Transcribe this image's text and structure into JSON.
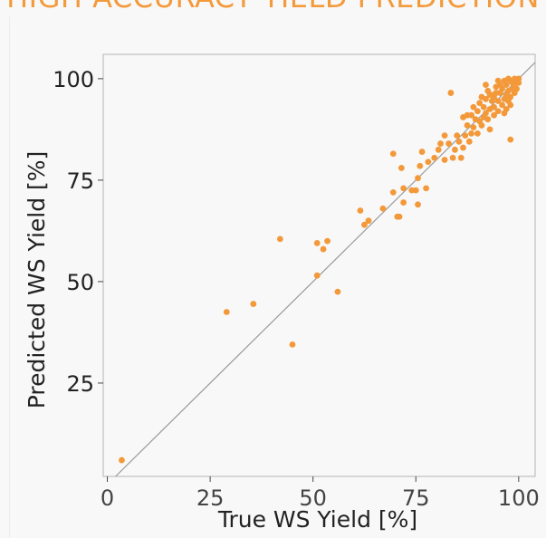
{
  "header": {
    "title": "HIGH ACCURACY YIELD PREDICTION"
  },
  "colors": {
    "accent": "#f39a3b",
    "points": "#f3993a",
    "diagonal": "#9a9a9a",
    "frame": "#b5b5b5"
  },
  "chart_data": {
    "type": "scatter",
    "xlabel": "True WS Yield [%]",
    "ylabel": "Predicted WS Yield [%]",
    "xlim": [
      -1,
      104
    ],
    "ylim": [
      2,
      106
    ],
    "xticks": [
      0,
      25,
      50,
      75,
      100
    ],
    "yticks": [
      25,
      50,
      75,
      100
    ],
    "grid": false,
    "reference_line": "y = x",
    "points": [
      [
        3.5,
        6
      ],
      [
        29,
        42.5
      ],
      [
        35.5,
        44.5
      ],
      [
        42,
        60.5
      ],
      [
        45,
        34.5
      ],
      [
        51,
        51.5
      ],
      [
        51,
        59.5
      ],
      [
        52.5,
        58
      ],
      [
        53.5,
        60
      ],
      [
        56,
        47.5
      ],
      [
        61.5,
        67.5
      ],
      [
        62.5,
        64
      ],
      [
        63.5,
        65
      ],
      [
        67,
        68
      ],
      [
        69.5,
        72
      ],
      [
        69.5,
        81.5
      ],
      [
        70.5,
        66
      ],
      [
        71,
        66
      ],
      [
        71.5,
        78
      ],
      [
        72,
        69.5
      ],
      [
        72,
        73
      ],
      [
        74,
        72.5
      ],
      [
        75,
        72.5
      ],
      [
        75.5,
        75.5
      ],
      [
        75.5,
        69
      ],
      [
        76,
        78.5
      ],
      [
        76.5,
        82
      ],
      [
        77.5,
        73
      ],
      [
        78,
        79.5
      ],
      [
        79.5,
        80.5
      ],
      [
        80.5,
        82.5
      ],
      [
        81,
        84
      ],
      [
        82,
        86
      ],
      [
        82,
        80
      ],
      [
        83,
        84
      ],
      [
        83.5,
        96.5
      ],
      [
        84,
        80.5
      ],
      [
        84.5,
        82.5
      ],
      [
        85,
        86
      ],
      [
        85.5,
        84.5
      ],
      [
        86,
        80.5
      ],
      [
        86.5,
        83
      ],
      [
        87,
        86
      ],
      [
        87.5,
        88.5
      ],
      [
        88,
        84.5
      ],
      [
        88.5,
        91
      ],
      [
        89,
        88
      ],
      [
        89.5,
        90
      ],
      [
        90,
        86.5
      ],
      [
        90,
        92
      ],
      [
        90.5,
        89.5
      ],
      [
        91,
        88.5
      ],
      [
        91.5,
        93
      ],
      [
        92,
        91.5
      ],
      [
        92,
        95
      ],
      [
        92.5,
        90
      ],
      [
        93,
        92.5
      ],
      [
        93,
        87.5
      ],
      [
        93.5,
        96
      ],
      [
        94,
        93
      ],
      [
        94,
        91
      ],
      [
        94.5,
        98
      ],
      [
        95,
        94.5
      ],
      [
        95,
        92
      ],
      [
        95.5,
        96.5
      ],
      [
        96,
        93.5
      ],
      [
        96,
        97.5
      ],
      [
        96.5,
        95
      ],
      [
        97,
        96
      ],
      [
        97,
        98.5
      ],
      [
        97.5,
        94.5
      ],
      [
        97.5,
        97
      ],
      [
        98,
        85
      ],
      [
        98,
        99.5
      ],
      [
        98,
        95.5
      ],
      [
        98.5,
        97.5
      ],
      [
        98.5,
        99
      ],
      [
        99,
        98
      ],
      [
        99,
        100
      ],
      [
        99.5,
        99
      ],
      [
        99.5,
        97.5
      ],
      [
        100,
        100
      ],
      [
        100,
        99
      ],
      [
        96.5,
        99.5
      ],
      [
        95.5,
        98.5
      ],
      [
        94.5,
        96.5
      ],
      [
        93.5,
        94.5
      ],
      [
        97.5,
        100
      ],
      [
        99,
        96.5
      ],
      [
        92.5,
        97
      ],
      [
        91,
        95.5
      ],
      [
        89,
        93
      ],
      [
        90.5,
        94
      ],
      [
        86.5,
        90.5
      ],
      [
        87.5,
        91
      ],
      [
        95,
        99.5
      ],
      [
        96.5,
        91.5
      ],
      [
        94,
        95.5
      ],
      [
        98,
        93.5
      ],
      [
        92,
        98.5
      ],
      [
        93,
        96
      ],
      [
        91.5,
        90.5
      ],
      [
        88.5,
        86.5
      ],
      [
        97,
        92.5
      ]
    ]
  }
}
